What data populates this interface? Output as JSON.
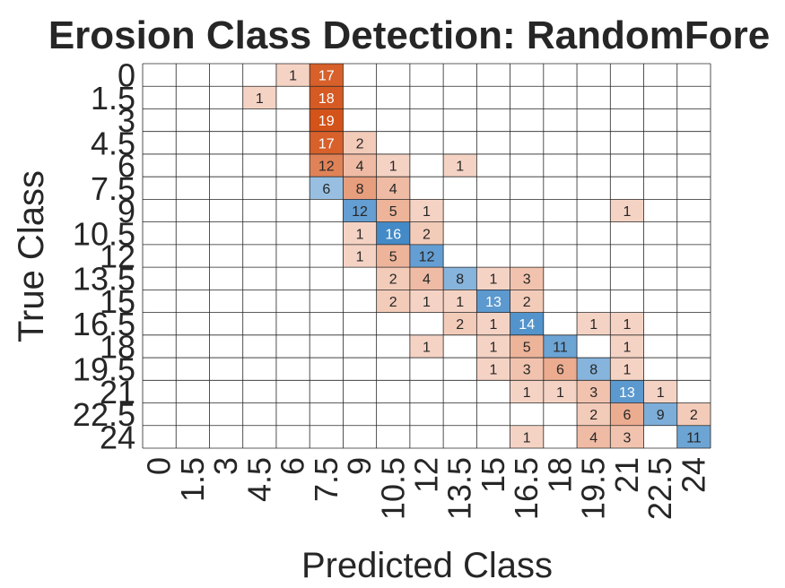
{
  "chart_data": {
    "type": "heatmap",
    "title": "Erosion Class Detection: RandomFore",
    "xlabel": "Predicted Class",
    "ylabel": "True Class",
    "categories": [
      "0",
      "1.5",
      "3",
      "4.5",
      "6",
      "7.5",
      "9",
      "10.5",
      "12",
      "13.5",
      "15",
      "16.5",
      "18",
      "19.5",
      "21",
      "22.5",
      "24"
    ],
    "cells": [
      {
        "true": "0",
        "predicted": "6",
        "value": 1
      },
      {
        "true": "0",
        "predicted": "7.5",
        "value": 17
      },
      {
        "true": "1.5",
        "predicted": "4.5",
        "value": 1
      },
      {
        "true": "1.5",
        "predicted": "7.5",
        "value": 18
      },
      {
        "true": "3",
        "predicted": "7.5",
        "value": 19
      },
      {
        "true": "4.5",
        "predicted": "7.5",
        "value": 17
      },
      {
        "true": "4.5",
        "predicted": "9",
        "value": 2
      },
      {
        "true": "6",
        "predicted": "7.5",
        "value": 12
      },
      {
        "true": "6",
        "predicted": "9",
        "value": 4
      },
      {
        "true": "6",
        "predicted": "10.5",
        "value": 1
      },
      {
        "true": "6",
        "predicted": "13.5",
        "value": 1
      },
      {
        "true": "7.5",
        "predicted": "7.5",
        "value": 6
      },
      {
        "true": "7.5",
        "predicted": "9",
        "value": 8
      },
      {
        "true": "7.5",
        "predicted": "10.5",
        "value": 4
      },
      {
        "true": "9",
        "predicted": "9",
        "value": 12
      },
      {
        "true": "9",
        "predicted": "10.5",
        "value": 5
      },
      {
        "true": "9",
        "predicted": "12",
        "value": 1
      },
      {
        "true": "9",
        "predicted": "21",
        "value": 1
      },
      {
        "true": "10.5",
        "predicted": "9",
        "value": 1
      },
      {
        "true": "10.5",
        "predicted": "10.5",
        "value": 16
      },
      {
        "true": "10.5",
        "predicted": "12",
        "value": 2
      },
      {
        "true": "12",
        "predicted": "9",
        "value": 1
      },
      {
        "true": "12",
        "predicted": "10.5",
        "value": 5
      },
      {
        "true": "12",
        "predicted": "12",
        "value": 12
      },
      {
        "true": "13.5",
        "predicted": "10.5",
        "value": 2
      },
      {
        "true": "13.5",
        "predicted": "12",
        "value": 4
      },
      {
        "true": "13.5",
        "predicted": "13.5",
        "value": 8
      },
      {
        "true": "13.5",
        "predicted": "15",
        "value": 1
      },
      {
        "true": "13.5",
        "predicted": "16.5",
        "value": 3
      },
      {
        "true": "15",
        "predicted": "10.5",
        "value": 2
      },
      {
        "true": "15",
        "predicted": "12",
        "value": 1
      },
      {
        "true": "15",
        "predicted": "13.5",
        "value": 1
      },
      {
        "true": "15",
        "predicted": "15",
        "value": 13
      },
      {
        "true": "15",
        "predicted": "16.5",
        "value": 2
      },
      {
        "true": "16.5",
        "predicted": "13.5",
        "value": 2
      },
      {
        "true": "16.5",
        "predicted": "15",
        "value": 1
      },
      {
        "true": "16.5",
        "predicted": "16.5",
        "value": 14
      },
      {
        "true": "16.5",
        "predicted": "19.5",
        "value": 1
      },
      {
        "true": "16.5",
        "predicted": "21",
        "value": 1
      },
      {
        "true": "18",
        "predicted": "12",
        "value": 1
      },
      {
        "true": "18",
        "predicted": "15",
        "value": 1
      },
      {
        "true": "18",
        "predicted": "16.5",
        "value": 5
      },
      {
        "true": "18",
        "predicted": "18",
        "value": 11
      },
      {
        "true": "18",
        "predicted": "21",
        "value": 1
      },
      {
        "true": "19.5",
        "predicted": "15",
        "value": 1
      },
      {
        "true": "19.5",
        "predicted": "16.5",
        "value": 3
      },
      {
        "true": "19.5",
        "predicted": "18",
        "value": 6
      },
      {
        "true": "19.5",
        "predicted": "19.5",
        "value": 8
      },
      {
        "true": "19.5",
        "predicted": "21",
        "value": 1
      },
      {
        "true": "21",
        "predicted": "16.5",
        "value": 1
      },
      {
        "true": "21",
        "predicted": "18",
        "value": 1
      },
      {
        "true": "21",
        "predicted": "19.5",
        "value": 3
      },
      {
        "true": "21",
        "predicted": "21",
        "value": 13
      },
      {
        "true": "21",
        "predicted": "22.5",
        "value": 1
      },
      {
        "true": "22.5",
        "predicted": "19.5",
        "value": 2
      },
      {
        "true": "22.5",
        "predicted": "21",
        "value": 6
      },
      {
        "true": "22.5",
        "predicted": "22.5",
        "value": 9
      },
      {
        "true": "22.5",
        "predicted": "24",
        "value": 2
      },
      {
        "true": "24",
        "predicted": "16.5",
        "value": 1
      },
      {
        "true": "24",
        "predicted": "19.5",
        "value": 4
      },
      {
        "true": "24",
        "predicted": "21",
        "value": 3
      },
      {
        "true": "24",
        "predicted": "24",
        "value": 11
      }
    ],
    "colors": {
      "diagonal_light": "#eaf2fb",
      "diagonal_dark": "#2b7bc0",
      "offdiag_light": "#fdf0ea",
      "offdiag_dark": "#d3531a",
      "grid": "#262626",
      "text_dark": "#262626",
      "text_light": "#ffffff"
    },
    "grid": true
  }
}
